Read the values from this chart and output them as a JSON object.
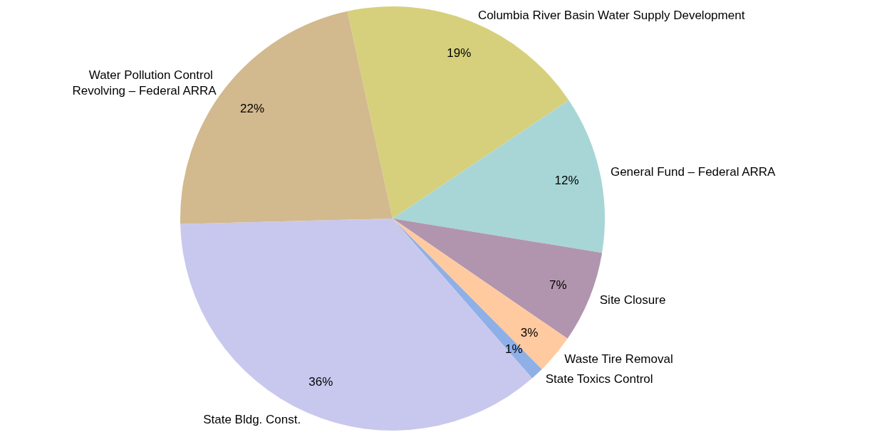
{
  "chart_data": {
    "type": "pie",
    "categories": [
      "Columbia River Basin Water Supply Development",
      "General Fund – Federal ARRA",
      "Site Closure",
      "Waste Tire Removal",
      "State Toxics Control",
      "State Bldg. Const.",
      "Water Pollution Control Revolving – Federal ARRA"
    ],
    "values": [
      19,
      12,
      7,
      3,
      1,
      36,
      22
    ],
    "colors": [
      "#d6d07c",
      "#a8d6d6",
      "#b195ae",
      "#ffcaa0",
      "#8fb0e6",
      "#c8c8ee",
      "#d2b98e"
    ],
    "value_labels": [
      "19%",
      "12%",
      "7%",
      "3%",
      "1%",
      "36%",
      "22%"
    ],
    "legend": false
  }
}
